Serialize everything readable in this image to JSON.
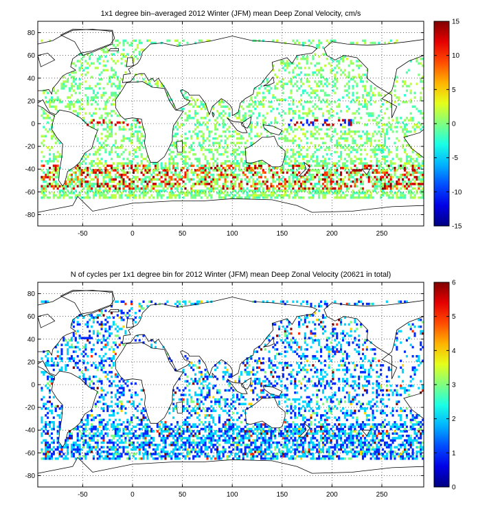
{
  "chart_data": [
    {
      "type": "heatmap",
      "title": "1x1 degree bin–averaged 2012 Winter (JFM) mean Deep Zonal Velocity, cm/s",
      "xlabel": "",
      "ylabel": "",
      "xlim": [
        -95,
        292
      ],
      "ylim": [
        -90,
        90
      ],
      "x_ticks": [
        -50,
        0,
        50,
        100,
        150,
        200,
        250
      ],
      "y_ticks": [
        80,
        60,
        40,
        20,
        0,
        -20,
        -40,
        -60,
        -80
      ],
      "grid": true,
      "grid_style": "dotted",
      "colorbar": {
        "min": -15,
        "max": 15,
        "ticks": [
          15,
          10,
          5,
          0,
          -5,
          -10,
          -15
        ],
        "colormap": "jet",
        "placement": "right"
      }
    },
    {
      "type": "heatmap",
      "title": "N of cycles per 1x1 degree bin for 2012 Winter (JFM) mean Deep Zonal Velocity (20621 in total)",
      "xlabel": "",
      "ylabel": "",
      "xlim": [
        -95,
        292
      ],
      "ylim": [
        -90,
        90
      ],
      "x_ticks": [
        -50,
        0,
        50,
        100,
        150,
        200,
        250
      ],
      "y_ticks": [
        80,
        60,
        40,
        20,
        0,
        -20,
        -40,
        -60,
        -80
      ],
      "grid": true,
      "grid_style": "dotted",
      "colorbar": {
        "min": 0,
        "max": 6,
        "ticks": [
          6,
          5,
          4,
          3,
          2,
          1,
          0
        ],
        "colormap": "jet",
        "placement": "right"
      }
    }
  ]
}
